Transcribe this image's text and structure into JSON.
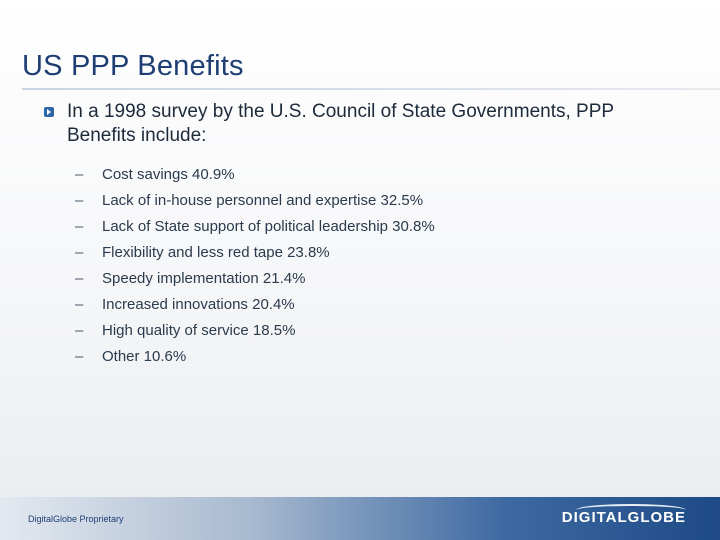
{
  "slide": {
    "title": "US PPP Benefits",
    "main_bullet": "In a 1998 survey by the U.S. Council of State Governments, PPP Benefits include:",
    "sub_items": [
      "Cost savings 40.9%",
      "Lack of in-house personnel and expertise 32.5%",
      "Lack of State support of political leadership 30.8%",
      "Flexibility and less red tape 23.8%",
      "Speedy implementation 21.4%",
      "Increased innovations 20.4%",
      "High quality of service 18.5%",
      "Other 10.6%"
    ],
    "dash": "–"
  },
  "footer": {
    "proprietary": "DigitalGlobe Proprietary",
    "logo": "DIGITALGLOBE"
  },
  "colors": {
    "title": "#1f3f74",
    "accent": "#2f68aa"
  }
}
